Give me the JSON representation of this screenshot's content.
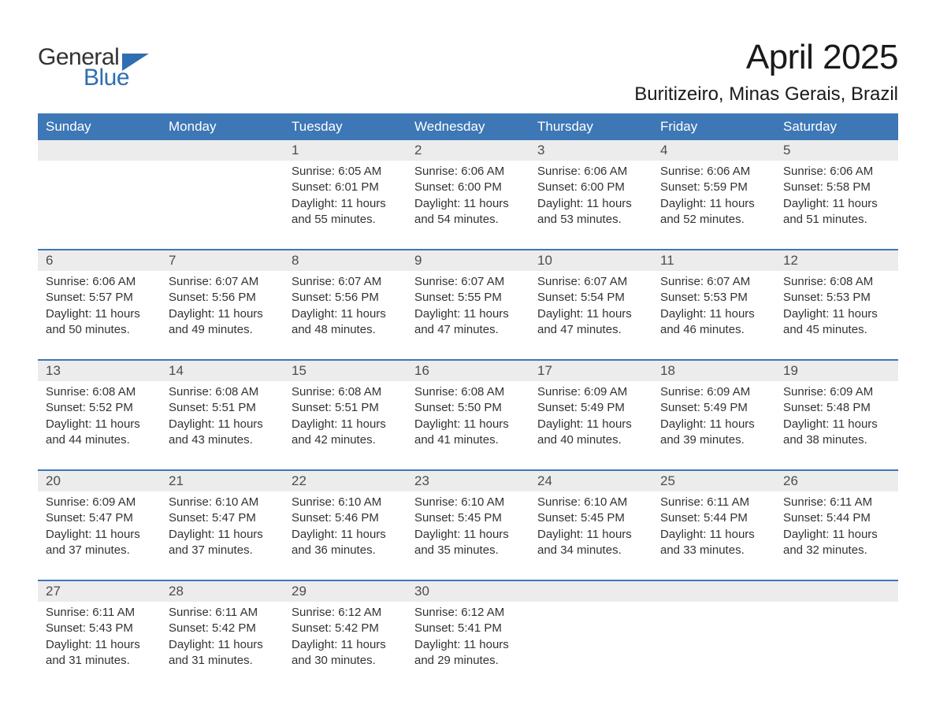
{
  "brand": {
    "word1": "General",
    "word2": "Blue",
    "text_color": "#333333",
    "accent_color": "#2f6eb0",
    "mark_color": "#2f6eb0"
  },
  "title": {
    "month": "April 2025",
    "location": "Buritizeiro, Minas Gerais, Brazil",
    "title_fontsize": 44,
    "location_fontsize": 24
  },
  "styling": {
    "page_bg": "#ffffff",
    "header_bg": "#3d77b6",
    "header_text": "#ffffff",
    "daynum_bg": "#ececec",
    "daynum_text": "#4d4d4d",
    "body_text": "#333333",
    "week_divider": "#3d77b6",
    "body_fontsize": 15,
    "dow_fontsize": 17,
    "columns": 7
  },
  "days_of_week": [
    "Sunday",
    "Monday",
    "Tuesday",
    "Wednesday",
    "Thursday",
    "Friday",
    "Saturday"
  ],
  "labels": {
    "sunrise": "Sunrise:",
    "sunset": "Sunset:",
    "daylight": "Daylight:"
  },
  "weeks": [
    [
      null,
      null,
      {
        "n": "1",
        "sunrise": "6:05 AM",
        "sunset": "6:01 PM",
        "daylight": "11 hours and 55 minutes."
      },
      {
        "n": "2",
        "sunrise": "6:06 AM",
        "sunset": "6:00 PM",
        "daylight": "11 hours and 54 minutes."
      },
      {
        "n": "3",
        "sunrise": "6:06 AM",
        "sunset": "6:00 PM",
        "daylight": "11 hours and 53 minutes."
      },
      {
        "n": "4",
        "sunrise": "6:06 AM",
        "sunset": "5:59 PM",
        "daylight": "11 hours and 52 minutes."
      },
      {
        "n": "5",
        "sunrise": "6:06 AM",
        "sunset": "5:58 PM",
        "daylight": "11 hours and 51 minutes."
      }
    ],
    [
      {
        "n": "6",
        "sunrise": "6:06 AM",
        "sunset": "5:57 PM",
        "daylight": "11 hours and 50 minutes."
      },
      {
        "n": "7",
        "sunrise": "6:07 AM",
        "sunset": "5:56 PM",
        "daylight": "11 hours and 49 minutes."
      },
      {
        "n": "8",
        "sunrise": "6:07 AM",
        "sunset": "5:56 PM",
        "daylight": "11 hours and 48 minutes."
      },
      {
        "n": "9",
        "sunrise": "6:07 AM",
        "sunset": "5:55 PM",
        "daylight": "11 hours and 47 minutes."
      },
      {
        "n": "10",
        "sunrise": "6:07 AM",
        "sunset": "5:54 PM",
        "daylight": "11 hours and 47 minutes."
      },
      {
        "n": "11",
        "sunrise": "6:07 AM",
        "sunset": "5:53 PM",
        "daylight": "11 hours and 46 minutes."
      },
      {
        "n": "12",
        "sunrise": "6:08 AM",
        "sunset": "5:53 PM",
        "daylight": "11 hours and 45 minutes."
      }
    ],
    [
      {
        "n": "13",
        "sunrise": "6:08 AM",
        "sunset": "5:52 PM",
        "daylight": "11 hours and 44 minutes."
      },
      {
        "n": "14",
        "sunrise": "6:08 AM",
        "sunset": "5:51 PM",
        "daylight": "11 hours and 43 minutes."
      },
      {
        "n": "15",
        "sunrise": "6:08 AM",
        "sunset": "5:51 PM",
        "daylight": "11 hours and 42 minutes."
      },
      {
        "n": "16",
        "sunrise": "6:08 AM",
        "sunset": "5:50 PM",
        "daylight": "11 hours and 41 minutes."
      },
      {
        "n": "17",
        "sunrise": "6:09 AM",
        "sunset": "5:49 PM",
        "daylight": "11 hours and 40 minutes."
      },
      {
        "n": "18",
        "sunrise": "6:09 AM",
        "sunset": "5:49 PM",
        "daylight": "11 hours and 39 minutes."
      },
      {
        "n": "19",
        "sunrise": "6:09 AM",
        "sunset": "5:48 PM",
        "daylight": "11 hours and 38 minutes."
      }
    ],
    [
      {
        "n": "20",
        "sunrise": "6:09 AM",
        "sunset": "5:47 PM",
        "daylight": "11 hours and 37 minutes."
      },
      {
        "n": "21",
        "sunrise": "6:10 AM",
        "sunset": "5:47 PM",
        "daylight": "11 hours and 37 minutes."
      },
      {
        "n": "22",
        "sunrise": "6:10 AM",
        "sunset": "5:46 PM",
        "daylight": "11 hours and 36 minutes."
      },
      {
        "n": "23",
        "sunrise": "6:10 AM",
        "sunset": "5:45 PM",
        "daylight": "11 hours and 35 minutes."
      },
      {
        "n": "24",
        "sunrise": "6:10 AM",
        "sunset": "5:45 PM",
        "daylight": "11 hours and 34 minutes."
      },
      {
        "n": "25",
        "sunrise": "6:11 AM",
        "sunset": "5:44 PM",
        "daylight": "11 hours and 33 minutes."
      },
      {
        "n": "26",
        "sunrise": "6:11 AM",
        "sunset": "5:44 PM",
        "daylight": "11 hours and 32 minutes."
      }
    ],
    [
      {
        "n": "27",
        "sunrise": "6:11 AM",
        "sunset": "5:43 PM",
        "daylight": "11 hours and 31 minutes."
      },
      {
        "n": "28",
        "sunrise": "6:11 AM",
        "sunset": "5:42 PM",
        "daylight": "11 hours and 31 minutes."
      },
      {
        "n": "29",
        "sunrise": "6:12 AM",
        "sunset": "5:42 PM",
        "daylight": "11 hours and 30 minutes."
      },
      {
        "n": "30",
        "sunrise": "6:12 AM",
        "sunset": "5:41 PM",
        "daylight": "11 hours and 29 minutes."
      },
      null,
      null,
      null
    ]
  ]
}
